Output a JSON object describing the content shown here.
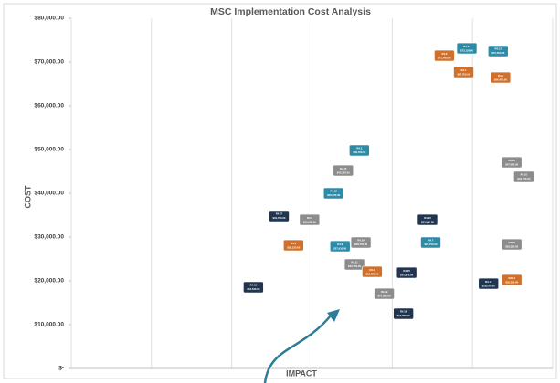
{
  "chart_data": {
    "type": "scatter",
    "title": "MSC Implementation Cost Analysis",
    "x_label": "IMPACT",
    "y_label": "COST",
    "x": [
      2.27,
      2.59,
      2.77,
      2.97,
      3.27,
      3.39,
      3.59,
      3.35,
      3.61,
      3.53,
      3.75,
      3.9,
      4.18,
      4.14,
      4.44,
      4.48,
      4.65,
      4.93,
      4.89,
      5.32,
      5.35,
      5.49,
      5.64,
      5.49,
      5.2,
      5.49
    ],
    "values": [
      18540,
      34790,
      28120,
      33950,
      40000,
      45200,
      49790,
      27910,
      28750,
      23750,
      22080,
      17080,
      21870,
      12500,
      33950,
      28750,
      71450,
      73120,
      67700,
      72500,
      66450,
      47080,
      43750,
      28330,
      19370,
      20200
    ],
    "value_labels": [
      "$18,540.00",
      "$34,790.00",
      "$28,120.00",
      "$33,950.00",
      "$40,000.00",
      "$45,200.00",
      "$49,790.00",
      "$27,910.00",
      "$28,750.00",
      "$23,750.00",
      "$22,080.00",
      "$17,080.00",
      "$21,870.00",
      "$12,500.00",
      "$33,950.00",
      "$28,750.00",
      "$71,450.00",
      "$73,120.00",
      "$67,700.00",
      "$72,500.00",
      "$66,450.00",
      "$47,080.00",
      "$43,750.00",
      "$28,330.00",
      "$19,370.00",
      "$20,200.00"
    ],
    "point_labels": [
      "R4.18",
      "R4.27",
      "R4.5",
      "R4.9",
      "R4.12",
      "R4.15",
      "R4.3",
      "R4.6",
      "R4.24",
      "R4.11",
      "R4.2",
      "R4.19",
      "R4.25",
      "R4.16",
      "R4.20",
      "R4.7",
      "R4.8",
      "R4.21",
      "R4.1",
      "R4.13",
      "R4.4",
      "R4.26",
      "R4.10",
      "R4.22",
      "R4.17",
      "R4.14"
    ],
    "colors": [
      "#1f3550",
      "#1f3550",
      "#d0702a",
      "#8c8c8c",
      "#2e8ba8",
      "#8c8c8c",
      "#2e8ba8",
      "#2e8ba8",
      "#8c8c8c",
      "#8c8c8c",
      "#d0702a",
      "#8c8c8c",
      "#1f3550",
      "#1f3550",
      "#1f3550",
      "#2e8ba8",
      "#d0702a",
      "#2e8ba8",
      "#d0702a",
      "#2e8ba8",
      "#d0702a",
      "#8c8c8c",
      "#8c8c8c",
      "#8c8c8c",
      "#1f3550",
      "#d0702a"
    ],
    "xlim": [
      0,
      6
    ],
    "xticks": [
      0,
      1,
      2,
      3,
      4,
      5,
      6
    ],
    "ylim": [
      0,
      80000
    ],
    "yticks": [
      {
        "value": 0,
        "label": "$-"
      },
      {
        "value": 10000,
        "label": "$10,000.00"
      },
      {
        "value": 20000,
        "label": "$20,000.00"
      },
      {
        "value": 30000,
        "label": "$30,000.00"
      },
      {
        "value": 40000,
        "label": "$40,000.00"
      },
      {
        "value": 50000,
        "label": "$50,000.00"
      },
      {
        "value": 60000,
        "label": "$60,000.00"
      },
      {
        "value": 70000,
        "label": "$70,000.00"
      },
      {
        "value": 80000,
        "label": "$80,000.00"
      }
    ]
  }
}
